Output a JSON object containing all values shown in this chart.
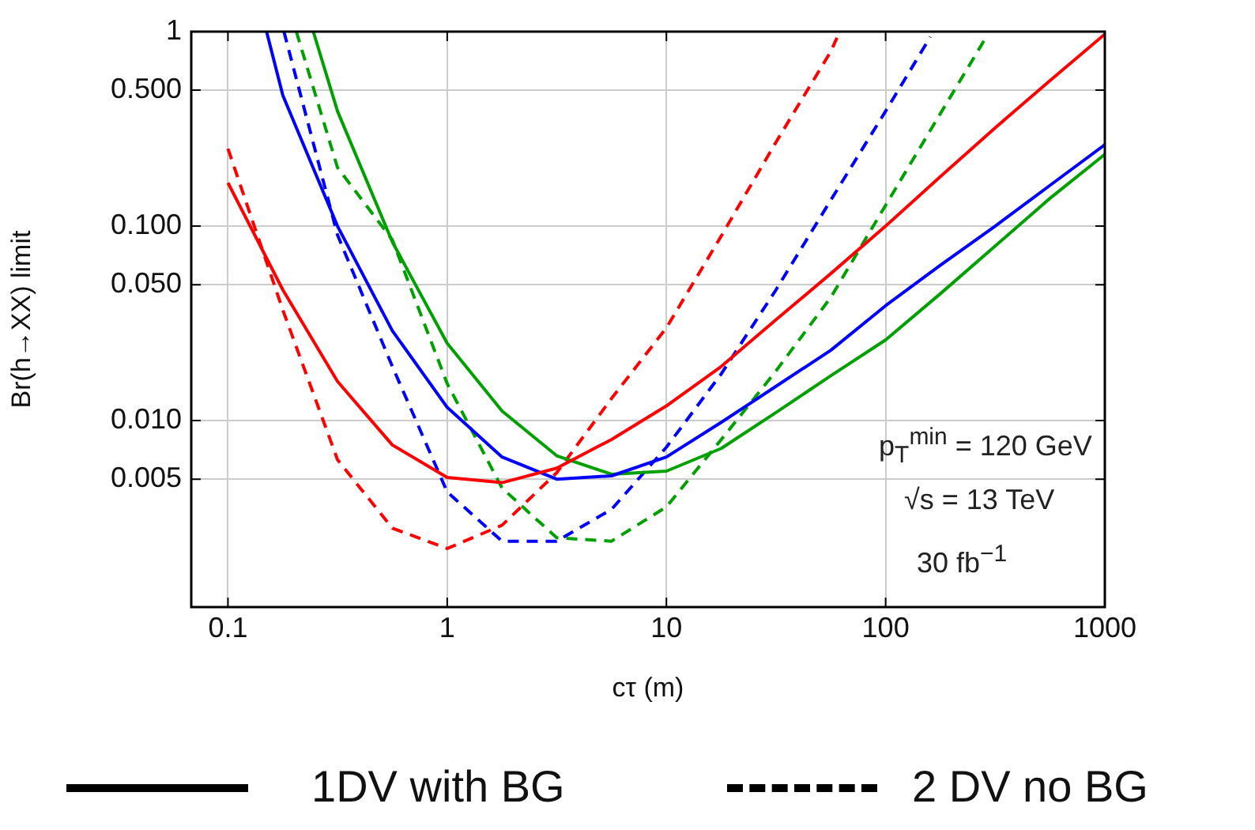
{
  "chart_data": {
    "type": "line",
    "xlabel": "cτ (m)",
    "ylabel": "Br(h→XX) limit",
    "log": "xy",
    "xlim": [
      0.068,
      1000
    ],
    "ylim": [
      0.0011,
      1
    ],
    "xticks": [
      0.1,
      1,
      10,
      100,
      1000
    ],
    "yticks": [
      {
        "value": 0.005,
        "label": "0.005"
      },
      {
        "value": 0.01,
        "label": "0.010"
      },
      {
        "value": 0.05,
        "label": "0.050"
      },
      {
        "value": 0.1,
        "label": "0.100"
      },
      {
        "value": 0.5,
        "label": "0.500"
      },
      1
    ],
    "grid": true,
    "legend": false,
    "marker": "none",
    "series": [
      {
        "color": "#ff0000",
        "line_style": "solid",
        "x": [
          0.1,
          0.178,
          0.316,
          0.562,
          1,
          1.78,
          3.16,
          5.62,
          10,
          17.8,
          31.6,
          56.2,
          100,
          178,
          316,
          562,
          1000
        ],
        "values": [
          0.167,
          0.047,
          0.0159,
          0.0075,
          0.0051,
          0.0048,
          0.0057,
          0.008,
          0.0119,
          0.019,
          0.033,
          0.057,
          0.1,
          0.18,
          0.32,
          0.56,
          0.97
        ]
      },
      {
        "color": "#0000ff",
        "line_style": "solid",
        "x": [
          0.15,
          0.178,
          0.316,
          0.562,
          1,
          1.78,
          3.16,
          5.62,
          10,
          17.8,
          31.6,
          56.2,
          100,
          178,
          316,
          562,
          1000
        ],
        "values": [
          1,
          0.47,
          0.1,
          0.029,
          0.0117,
          0.0065,
          0.005,
          0.0052,
          0.0065,
          0.0098,
          0.015,
          0.023,
          0.039,
          0.063,
          0.1,
          0.162,
          0.262
        ]
      },
      {
        "color": "#00a000",
        "line_style": "solid",
        "x": [
          0.245,
          0.316,
          0.562,
          1,
          1.78,
          3.16,
          5.62,
          10,
          17.8,
          31.6,
          56.2,
          100,
          178,
          316,
          562,
          1000
        ],
        "values": [
          1,
          0.39,
          0.083,
          0.025,
          0.0112,
          0.0066,
          0.0053,
          0.0055,
          0.0072,
          0.011,
          0.017,
          0.026,
          0.045,
          0.079,
          0.139,
          0.234
        ]
      },
      {
        "color": "#ff0000",
        "line_style": "dashed",
        "x": [
          0.1,
          0.178,
          0.316,
          0.562,
          1,
          1.78,
          3.16,
          5.62,
          10,
          17.8,
          31.6,
          56.2,
          60
        ],
        "values": [
          0.25,
          0.037,
          0.0063,
          0.0028,
          0.0022,
          0.0029,
          0.0054,
          0.013,
          0.03,
          0.089,
          0.27,
          0.79,
          0.93
        ]
      },
      {
        "color": "#0000ff",
        "line_style": "dashed",
        "x": [
          0.18,
          0.316,
          0.562,
          1,
          1.78,
          3.16,
          5.62,
          10,
          17.8,
          31.6,
          56.2,
          100,
          160
        ],
        "values": [
          1,
          0.09,
          0.019,
          0.0043,
          0.0024,
          0.0024,
          0.0035,
          0.0073,
          0.0174,
          0.047,
          0.136,
          0.39,
          0.94
        ]
      },
      {
        "color": "#00a000",
        "line_style": "dashed",
        "x": [
          0.205,
          0.316,
          0.562,
          1,
          1.78,
          3.16,
          5.62,
          10,
          17.8,
          31.6,
          56.2,
          100,
          178,
          288
        ],
        "values": [
          1,
          0.2,
          0.085,
          0.0155,
          0.0045,
          0.0025,
          0.0024,
          0.0036,
          0.008,
          0.018,
          0.043,
          0.128,
          0.38,
          0.94
        ]
      }
    ],
    "annotations": [
      "p$_{T}$$^{min}$ = 120 GeV",
      "√s = 13 TeV",
      "30 fb$^{−1}$",
      "1DV with BG",
      "2 DV no BG"
    ]
  }
}
